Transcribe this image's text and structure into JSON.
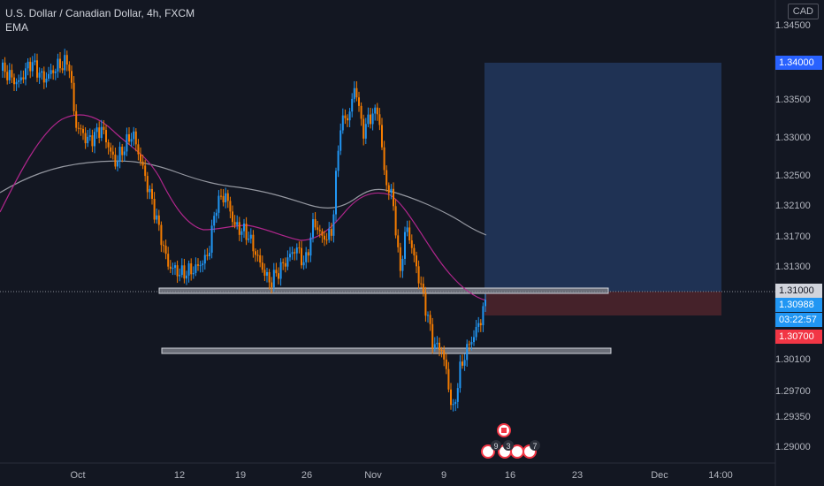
{
  "legend": {
    "symbol": "U.S. Dollar / Canadian Dollar, 4h, FXCM",
    "indicator": "EMA"
  },
  "currency": "CAD",
  "colors": {
    "bg": "#131722",
    "up": "#2196f3",
    "down": "#f57c00",
    "ema_fast": "#b0268c",
    "ema_slow": "#9598a1",
    "target_zone": "#1f3254",
    "stop_zone": "#45222a"
  },
  "price_axis": [
    "1.34500",
    "1.33500",
    "1.33000",
    "1.32500",
    "1.32100",
    "1.31700",
    "1.31300",
    "1.30100",
    "1.29700",
    "1.29350",
    "1.29000"
  ],
  "price_tags": {
    "target": {
      "value": "1.34000",
      "color": "#2962ff"
    },
    "entry": {
      "value": "1.31000",
      "color": "#d1d4dc"
    },
    "current": {
      "value": "1.30988",
      "color": "#2196f3"
    },
    "countdown": {
      "value": "03:22:57",
      "color": "#2196f3"
    },
    "stop": {
      "value": "1.30700",
      "color": "#f23645"
    }
  },
  "time_axis": [
    "Oct",
    "12",
    "19",
    "26",
    "Nov",
    "9",
    "16",
    "23",
    "Dec",
    "14:00"
  ],
  "events": {
    "flag": "canada-flag-icon",
    "badges": [
      "9",
      "3",
      "7"
    ]
  }
}
